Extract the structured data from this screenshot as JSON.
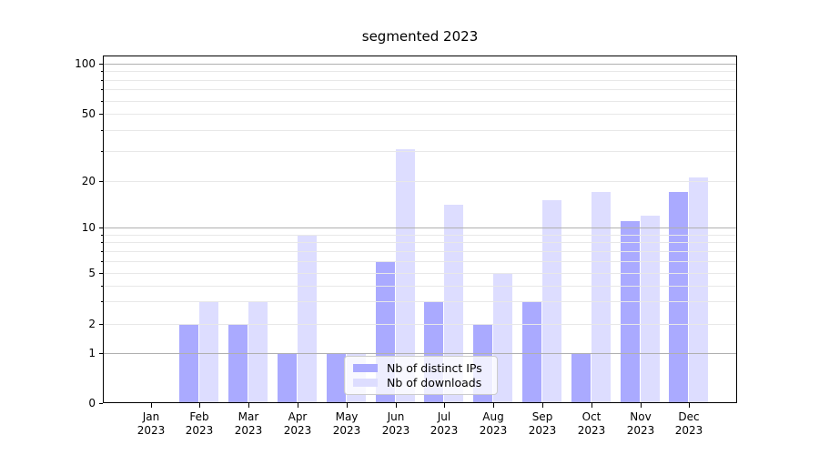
{
  "title": "segmented 2023",
  "chart_data": {
    "type": "bar",
    "title": "segmented 2023",
    "categories": [
      "Jan",
      "Feb",
      "Mar",
      "Apr",
      "May",
      "Jun",
      "Jul",
      "Aug",
      "Sep",
      "Oct",
      "Nov",
      "Dec"
    ],
    "year": "2023",
    "series": [
      {
        "name": "Nb of distinct IPs",
        "color": "#aaaaff",
        "values": [
          0,
          2,
          2,
          1,
          1,
          6,
          3,
          2,
          3,
          1,
          11,
          17
        ]
      },
      {
        "name": "Nb of downloads",
        "color": "#ddddff",
        "values": [
          0,
          3,
          3,
          9,
          1,
          31,
          14,
          5,
          15,
          17,
          12,
          21
        ]
      }
    ],
    "y_axis": {
      "ticks": [
        0,
        1,
        2,
        5,
        10,
        20,
        50,
        100
      ],
      "scale": "log-like segmented scale, linear 0-1",
      "range": [
        0,
        110
      ],
      "major_grid_levels": [
        1,
        10,
        100
      ],
      "minor_grid_levels": [
        2,
        3,
        4,
        5,
        6,
        7,
        8,
        9,
        20,
        30,
        40,
        50,
        60,
        70,
        80,
        90
      ]
    },
    "x_axis": {
      "tick_label_format": "Month over year, two lines"
    },
    "grid": "horizontal major+minor",
    "legend_position": "inside plot, lower center-left"
  }
}
